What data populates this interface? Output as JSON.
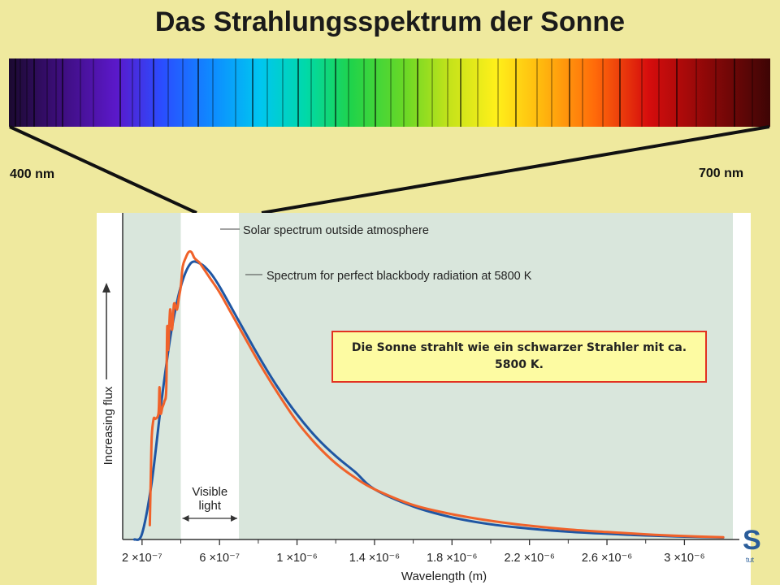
{
  "slide": {
    "title": "Das Strahlungsspektrum der Sonne",
    "band_left_label": "400 nm",
    "band_right_label": "700 nm",
    "callout_text": "Die Sonne strahlt wie ein schwarzer Strahler mit ca. 5800 K."
  },
  "colors": {
    "background": "#efe99e",
    "plot_shade": "#d9e6dc",
    "visible_band": "#ffffff",
    "blackbody_curve": "#1f56a3",
    "solar_curve": "#f0622a",
    "callout_border": "#e23121"
  },
  "chart_data": {
    "type": "line",
    "xlabel": "Wavelength (m)",
    "ylabel": "Increasing flux",
    "x_ticks": [
      "2 ×10⁻⁷",
      "6 ×10⁻⁷",
      "1 ×10⁻⁶",
      "1.4 ×10⁻⁶",
      "1.8 ×10⁻⁶",
      "2.2 ×10⁻⁶",
      "2.6 ×10⁻⁶",
      "3 ×10⁻⁶"
    ],
    "x_tick_values": [
      2e-07,
      6e-07,
      1e-06,
      1.4e-06,
      1.8e-06,
      2.2e-06,
      2.6e-06,
      3e-06
    ],
    "xlim": [
      1e-07,
      3.25e-06
    ],
    "ylim": [
      0,
      1.08
    ],
    "visible_band": {
      "label": "Visible light",
      "x_range": [
        4e-07,
        7e-07
      ]
    },
    "series": [
      {
        "name": "Solar spectrum outside atmosphere",
        "color": "#f0622a",
        "points": [
          [
            2.4e-07,
            0.05
          ],
          [
            2.45e-07,
            0.22
          ],
          [
            2.5e-07,
            0.36
          ],
          [
            2.6e-07,
            0.42
          ],
          [
            2.7e-07,
            0.42
          ],
          [
            2.85e-07,
            0.44
          ],
          [
            2.9e-07,
            0.53
          ],
          [
            2.95e-07,
            0.44
          ],
          [
            3.05e-07,
            0.46
          ],
          [
            3.15e-07,
            0.48
          ],
          [
            3.25e-07,
            0.52
          ],
          [
            3.3e-07,
            0.74
          ],
          [
            3.35e-07,
            0.66
          ],
          [
            3.45e-07,
            0.8
          ],
          [
            3.55e-07,
            0.73
          ],
          [
            3.65e-07,
            0.82
          ],
          [
            3.8e-07,
            0.8
          ],
          [
            3.9e-07,
            0.84
          ],
          [
            4e-07,
            0.88
          ],
          [
            4.1e-07,
            0.95
          ],
          [
            4.25e-07,
            0.98
          ],
          [
            4.4e-07,
            1.0
          ],
          [
            4.55e-07,
            1.0
          ],
          [
            4.7e-07,
            0.98
          ],
          [
            4.85e-07,
            0.97
          ],
          [
            5e-07,
            0.96
          ],
          [
            5.5e-07,
            0.91
          ],
          [
            6e-07,
            0.86
          ],
          [
            6.5e-07,
            0.8
          ],
          [
            7e-07,
            0.74
          ],
          [
            8e-07,
            0.62
          ],
          [
            9e-07,
            0.51
          ],
          [
            1e-06,
            0.41
          ],
          [
            1.1e-06,
            0.33
          ],
          [
            1.2e-06,
            0.265
          ],
          [
            1.3e-06,
            0.215
          ],
          [
            1.4e-06,
            0.175
          ],
          [
            1.6e-06,
            0.12
          ],
          [
            1.8e-06,
            0.088
          ],
          [
            2e-06,
            0.065
          ],
          [
            2.2e-06,
            0.048
          ],
          [
            2.4e-06,
            0.035
          ],
          [
            2.6e-06,
            0.026
          ],
          [
            2.8e-06,
            0.018
          ],
          [
            3e-06,
            0.012
          ],
          [
            3.2e-06,
            0.008
          ]
        ]
      },
      {
        "name": "Spectrum for perfect blackbody radiation at 5800 K",
        "color": "#1f56a3",
        "points": [
          [
            1.6e-07,
            0.0
          ],
          [
            2e-07,
            0.02
          ],
          [
            2.5e-07,
            0.2
          ],
          [
            3e-07,
            0.48
          ],
          [
            3.5e-07,
            0.72
          ],
          [
            4e-07,
            0.88
          ],
          [
            4.5e-07,
            0.96
          ],
          [
            5e-07,
            0.96
          ],
          [
            5.5e-07,
            0.93
          ],
          [
            6e-07,
            0.88
          ],
          [
            7e-07,
            0.76
          ],
          [
            8e-07,
            0.64
          ],
          [
            9e-07,
            0.53
          ],
          [
            1e-06,
            0.435
          ],
          [
            1.1e-06,
            0.355
          ],
          [
            1.2e-06,
            0.29
          ],
          [
            1.3e-06,
            0.235
          ],
          [
            1.4e-06,
            0.175
          ],
          [
            1.6e-06,
            0.115
          ],
          [
            1.8e-06,
            0.077
          ],
          [
            2e-06,
            0.053
          ],
          [
            2.2e-06,
            0.038
          ],
          [
            2.4e-06,
            0.027
          ],
          [
            2.6e-06,
            0.02
          ],
          [
            2.8e-06,
            0.014
          ],
          [
            3e-06,
            0.01
          ],
          [
            3.2e-06,
            0.007
          ]
        ]
      }
    ]
  }
}
